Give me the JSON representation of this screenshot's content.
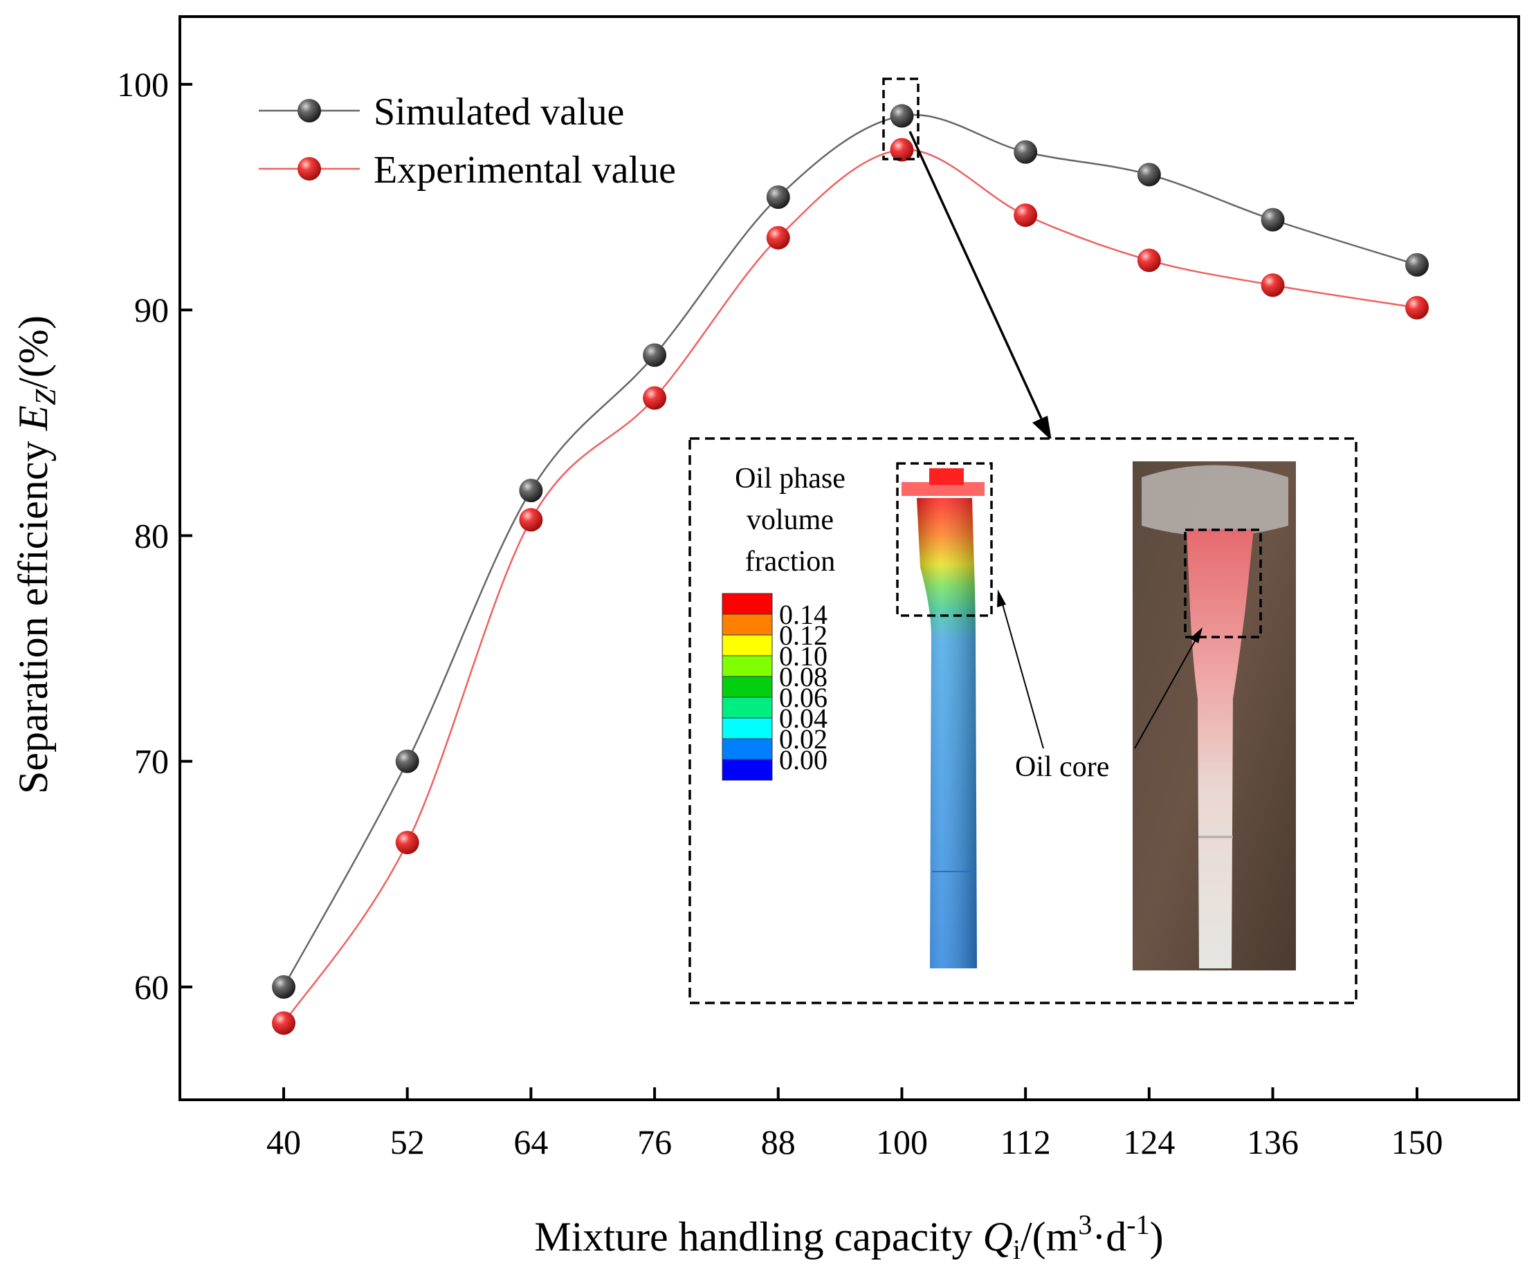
{
  "chart_data": {
    "type": "line",
    "x": [
      40,
      52,
      64,
      76,
      88,
      100,
      112,
      124,
      136,
      150
    ],
    "x_tick_labels": [
      "40",
      "52",
      "64",
      "76",
      "88",
      "100",
      "112",
      "124",
      "136",
      "150"
    ],
    "series": [
      {
        "name": "Simulated value",
        "color": "#555555",
        "values": [
          60.0,
          70.0,
          82.0,
          88.0,
          95.0,
          98.6,
          97.0,
          96.0,
          94.0,
          92.0
        ]
      },
      {
        "name": "Experimental value",
        "color": "#e8272c",
        "values": [
          58.4,
          66.4,
          80.7,
          86.1,
          93.2,
          97.1,
          94.2,
          92.2,
          91.1,
          90.1
        ]
      }
    ],
    "xlabel": {
      "text": "Mixture handling capacity ",
      "var": "Q",
      "sub": "i",
      "rest1": "/(m",
      "sup1": "3",
      "rest2": "·d",
      "sup2": "-1",
      "rest3": ")"
    },
    "ylabel": {
      "text": "Separation efficiency ",
      "var": "E",
      "sub": "Z",
      "rest": "/(%)"
    },
    "y_ticks": [
      60,
      70,
      80,
      90,
      100
    ],
    "ylim": [
      55,
      103
    ],
    "grid": false,
    "legend_position": "top-left",
    "highlight_x": 100
  },
  "inset": {
    "colorbar_title": [
      "Oil phase",
      "volume",
      "fraction"
    ],
    "colorbar_levels": [
      "0.14",
      "0.12",
      "0.10",
      "0.08",
      "0.06",
      "0.04",
      "0.02",
      "0.00"
    ],
    "colorbar_colors": [
      "#ff0000",
      "#ff8000",
      "#ffff00",
      "#80ff00",
      "#00d010",
      "#00ee80",
      "#00ffff",
      "#0080ff",
      "#0000ff"
    ],
    "annotation": "Oil core"
  }
}
